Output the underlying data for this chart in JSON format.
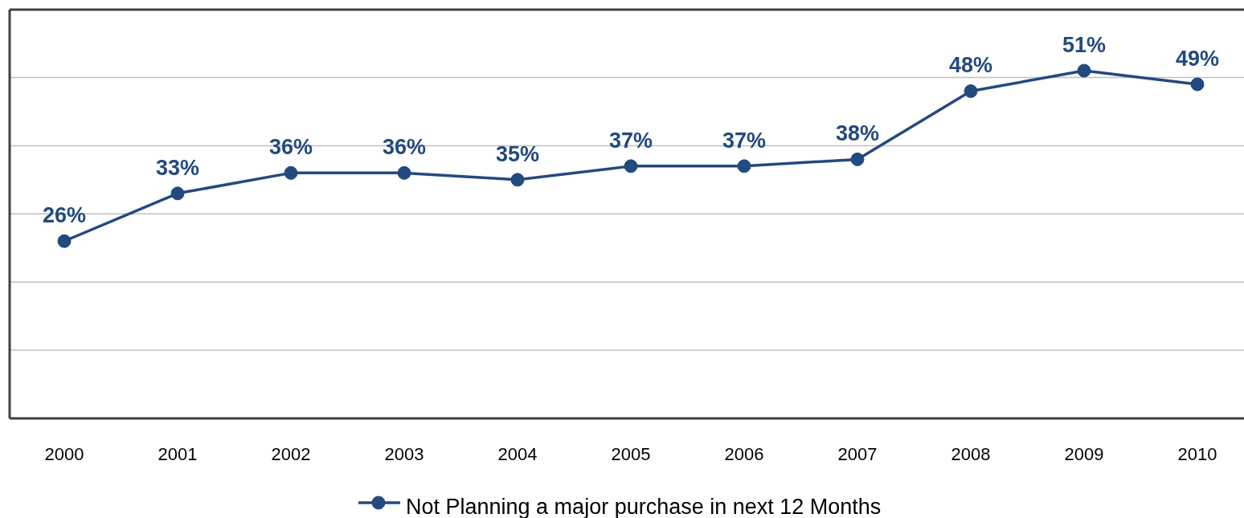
{
  "chart_data": {
    "type": "line",
    "categories": [
      "2000",
      "2001",
      "2002",
      "2003",
      "2004",
      "2005",
      "2006",
      "2007",
      "2008",
      "2009",
      "2010"
    ],
    "series": [
      {
        "name": "Not Planning a major purchase in next 12 Months",
        "color": "#234a7f",
        "values": [
          26,
          33,
          36,
          36,
          35,
          37,
          37,
          38,
          48,
          51,
          49
        ],
        "value_labels": [
          "26%",
          "33%",
          "36%",
          "36%",
          "35%",
          "37%",
          "37%",
          "38%",
          "48%",
          "51%",
          "49%"
        ]
      }
    ],
    "tick_labels": "x",
    "grid": "y",
    "legend": "bottom",
    "marker": "circle",
    "line_style": "solid"
  }
}
